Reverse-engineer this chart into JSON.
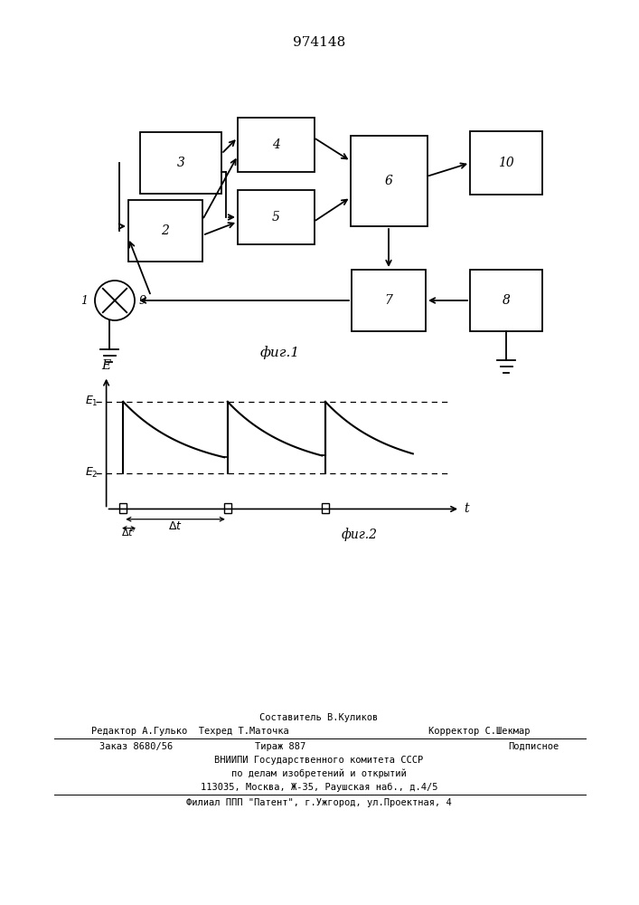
{
  "title_number": "974148",
  "fig1_label": "фиг.1",
  "fig2_label": "фиг.2",
  "background_color": "#ffffff",
  "line_color": "#000000",
  "footer_line1": "Составитель В.Куликов",
  "footer_line2": "Редактор А.Гулько  Техред Т.Маточка",
  "footer_line2r": "Корректор С.Шекмар",
  "footer_line3a": "Заказ 8680/56",
  "footer_line3b": "Тираж 887",
  "footer_line3c": "Подписное",
  "footer_line4": "ВНИИПИ Государственного комитета СССР",
  "footer_line5": "по делам изобретений и открытий",
  "footer_line6": "113035, Москва, Ж-35, Раушская наб., д.4/5",
  "footer_line7": "Филиал ППП \"Патент\", г.Ужгород, ул.Проектная, 4"
}
